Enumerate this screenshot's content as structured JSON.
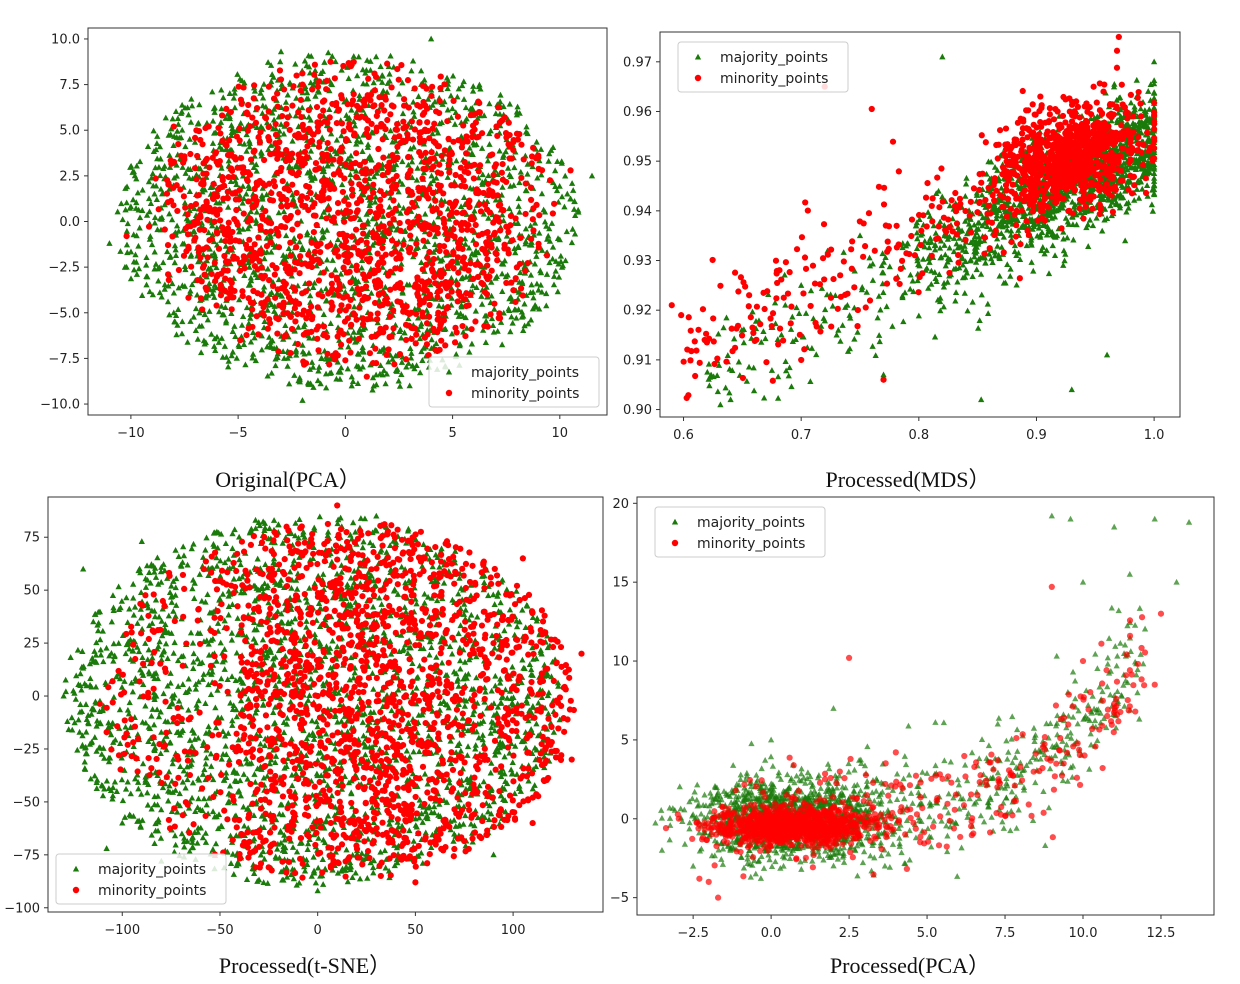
{
  "figure": {
    "captions": [
      "Original(PCA）",
      "Processed(MDS）",
      "Processed(t-SNE）",
      "Processed(PCA）"
    ]
  },
  "colors": {
    "majority": "#1a7a0a",
    "minority": "#ff0000",
    "axes": "#333333"
  },
  "chart_data": [
    {
      "type": "scatter",
      "title": "Original(PCA）",
      "xlabel": "",
      "ylabel": "",
      "xlim": [
        -12,
        12.2
      ],
      "ylim": [
        -10.6,
        10.6
      ],
      "xticks": [
        "−10",
        "−5",
        "0",
        "5",
        "10"
      ],
      "yticks": [
        "10.0",
        "7.5",
        "5.0",
        "2.5",
        "0.0",
        "−2.5",
        "−5.0",
        "−7.5",
        "−10.0"
      ],
      "legend": {
        "placement": "lower-right"
      },
      "series": [
        {
          "name": "majority_points",
          "marker": "triangle",
          "color": "#1a7a0a",
          "distribution": "dense elliptical cloud centred near (0, 0), x from about -11 to 11.5, y from about -10 to 10",
          "points": [
            [
              -11,
              -1.2
            ],
            [
              -10.2,
              -2.5
            ],
            [
              11.5,
              2.5
            ],
            [
              4,
              10
            ],
            [
              -3,
              9.3
            ],
            [
              -2,
              -9.8
            ],
            [
              3,
              -9
            ],
            [
              8,
              6
            ],
            [
              -8,
              -5
            ],
            [
              10,
              -1
            ]
          ]
        },
        {
          "name": "minority_points",
          "marker": "circle",
          "color": "#ff0000",
          "distribution": "slightly narrower cloud over the same region, densest near (0, 0.5)",
          "points": [
            [
              -10.2,
              -0.8
            ],
            [
              10.5,
              2.8
            ],
            [
              -8,
              5.2
            ],
            [
              9,
              3.5
            ],
            [
              0,
              0.5
            ],
            [
              1,
              -8.5
            ],
            [
              -2,
              7.5
            ]
          ]
        }
      ]
    },
    {
      "type": "scatter",
      "title": "Processed(MDS）",
      "xlabel": "",
      "ylabel": "",
      "xlim": [
        0.58,
        1.022
      ],
      "ylim": [
        0.8985,
        0.976
      ],
      "xticks": [
        "0.6",
        "0.7",
        "0.8",
        "0.9",
        "1.0"
      ],
      "yticks": [
        "0.97",
        "0.96",
        "0.95",
        "0.94",
        "0.93",
        "0.92",
        "0.91",
        "0.90"
      ],
      "legend": {
        "placement": "upper-left"
      },
      "series": [
        {
          "name": "majority_points",
          "marker": "triangle",
          "color": "#1a7a0a",
          "distribution": "dense band along the upper right from (0.8, 0.93) to (1.0, 0.955), sparse scatter toward lower left",
          "points": [
            [
              0.64,
              0.902
            ],
            [
              0.853,
              0.902
            ],
            [
              0.93,
              0.904
            ],
            [
              0.77,
              0.907
            ],
            [
              0.96,
              0.911
            ],
            [
              0.82,
              0.971
            ],
            [
              1.0,
              0.97
            ],
            [
              0.7,
              0.925
            ],
            [
              0.75,
              0.935
            ]
          ]
        },
        {
          "name": "minority_points",
          "marker": "circle",
          "color": "#ff0000",
          "distribution": "densest near (0.95, 0.953), scattered down toward (0.6, 0.92)",
          "points": [
            [
              0.59,
              0.921
            ],
            [
              0.598,
              0.919
            ],
            [
              0.618,
              0.914
            ],
            [
              0.97,
              0.975
            ],
            [
              0.72,
              0.965
            ],
            [
              0.76,
              0.9605
            ],
            [
              0.77,
              0.906
            ],
            [
              0.95,
              0.953
            ]
          ]
        }
      ]
    },
    {
      "type": "scatter",
      "title": "Processed(t-SNE）",
      "xlabel": "",
      "ylabel": "",
      "xlim": [
        -138,
        146
      ],
      "ylim": [
        -102,
        94
      ],
      "xticks": [
        "−100",
        "−50",
        "0",
        "50",
        "100"
      ],
      "yticks": [
        "75",
        "50",
        "25",
        "0",
        "−25",
        "−50",
        "−75",
        "−100"
      ],
      "legend": {
        "placement": "lower-left"
      },
      "series": [
        {
          "name": "majority_points",
          "marker": "triangle",
          "color": "#1a7a0a",
          "distribution": "large blob spanning x -130 to 130, y -92 to 88, dominant on the left half",
          "points": [
            [
              -130,
              0
            ],
            [
              -120,
              60
            ],
            [
              -90,
              73
            ],
            [
              -100,
              -60
            ],
            [
              -80,
              -78
            ],
            [
              0,
              -92
            ],
            [
              30,
              85
            ],
            [
              90,
              -75
            ],
            [
              -108,
              -72
            ]
          ]
        },
        {
          "name": "minority_points",
          "marker": "circle",
          "color": "#ff0000",
          "distribution": "interleaved worm-like clusters, dominant on the right edge (x 90 to 135)",
          "points": [
            [
              10,
              90
            ],
            [
              105,
              65
            ],
            [
              135,
              20
            ],
            [
              130,
              -30
            ],
            [
              110,
              -60
            ],
            [
              50,
              -88
            ],
            [
              0,
              0
            ],
            [
              -30,
              40
            ]
          ]
        }
      ]
    },
    {
      "type": "scatter",
      "title": "Processed(PCA）",
      "xlabel": "",
      "ylabel": "",
      "xlim": [
        -4.3,
        14.2
      ],
      "ylim": [
        -6.1,
        20.4
      ],
      "xticks": [
        "−2.5",
        "0.0",
        "2.5",
        "5.0",
        "7.5",
        "10.0",
        "12.5"
      ],
      "yticks": [
        "20",
        "15",
        "10",
        "5",
        "0",
        "−5"
      ],
      "legend": {
        "placement": "upper-left"
      },
      "series": [
        {
          "name": "majority_points",
          "marker": "triangle",
          "color": "#1a7a0a",
          "distribution": "dense cluster near (0.5, 0) spreading right and rising as a curve to (13, 19)",
          "points": [
            [
              -3.5,
              -2
            ],
            [
              -2.5,
              -3
            ],
            [
              0,
              5
            ],
            [
              2,
              7
            ],
            [
              9,
              19.2
            ],
            [
              9.6,
              19
            ],
            [
              11,
              18.5
            ],
            [
              12.3,
              19
            ],
            [
              13.4,
              18.8
            ],
            [
              13,
              15
            ],
            [
              11.5,
              15.5
            ],
            [
              10,
              15
            ]
          ]
        },
        {
          "name": "minority_points",
          "marker": "circle",
          "color": "#ff0000",
          "distribution": "dense core near (0.5, -0.5), following the same rising curve with larger scatter",
          "points": [
            [
              -1.7,
              -5
            ],
            [
              -2,
              -4
            ],
            [
              -2.3,
              -3.8
            ],
            [
              9,
              14.7
            ],
            [
              12.5,
              13
            ],
            [
              12.3,
              8.5
            ],
            [
              2.5,
              10.2
            ],
            [
              0.5,
              -0.5
            ],
            [
              10,
              10
            ]
          ]
        }
      ]
    }
  ]
}
